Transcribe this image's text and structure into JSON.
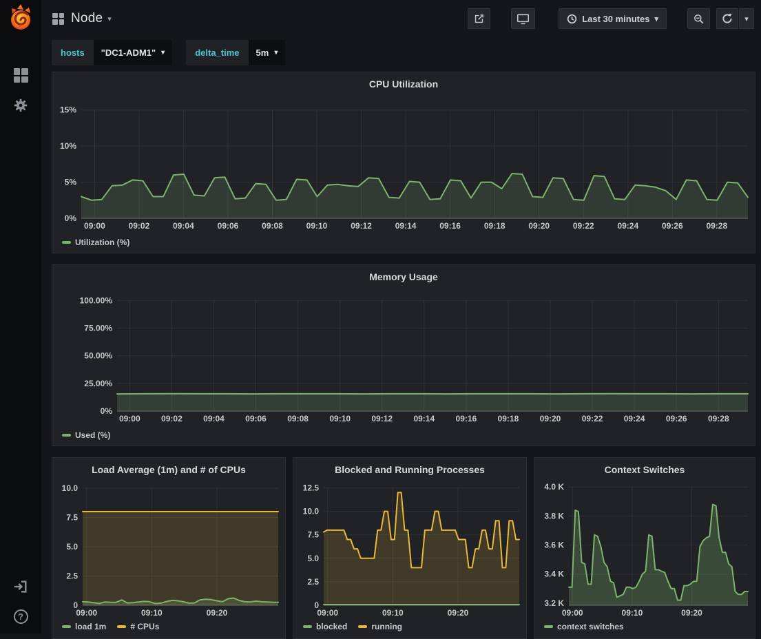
{
  "topnav": {
    "title": "Node",
    "buttons": [
      {
        "name": "share-icon"
      },
      {
        "name": "tv-mode-icon"
      },
      {
        "name": "time-range-picker",
        "icon": "clock-icon",
        "label": "Last 30 minutes"
      },
      {
        "name": "zoom-out-icon"
      },
      {
        "name": "refresh-icon"
      },
      {
        "name": "refresh-interval-caret"
      }
    ]
  },
  "sidebar": {
    "items": [
      {
        "icon": "grafana-logo"
      },
      {
        "icon": "dashboards-grid-icon"
      },
      {
        "icon": "settings-gear-icon"
      },
      {
        "icon": "sign-in-icon"
      },
      {
        "icon": "help-icon"
      }
    ]
  },
  "variables": [
    {
      "label": "hosts",
      "value": "\"DC1-ADM1\""
    },
    {
      "label": "delta_time",
      "value": "5m"
    }
  ],
  "colors": {
    "green": "#7eb26d",
    "orange": "#eab839",
    "teal": "#4ec9d4",
    "panel_bg": "#212226",
    "page_bg": "#141619"
  },
  "chart_data": [
    {
      "type": "area",
      "title": "CPU Utilization",
      "xdomain": [
        -0.6,
        29.4
      ],
      "ylim": [
        0,
        16.4
      ],
      "layout": {
        "ml": 38
      },
      "x_ticks": [
        {
          "v": 0,
          "label": "09:00"
        },
        {
          "v": 2,
          "label": "09:02"
        },
        {
          "v": 4,
          "label": "09:04"
        },
        {
          "v": 6,
          "label": "09:06"
        },
        {
          "v": 8,
          "label": "09:08"
        },
        {
          "v": 10,
          "label": "09:10"
        },
        {
          "v": 12,
          "label": "09:12"
        },
        {
          "v": 14,
          "label": "09:14"
        },
        {
          "v": 16,
          "label": "09:16"
        },
        {
          "v": 18,
          "label": "09:18"
        },
        {
          "v": 20,
          "label": "09:20"
        },
        {
          "v": 22,
          "label": "09:22"
        },
        {
          "v": 24,
          "label": "09:24"
        },
        {
          "v": 26,
          "label": "09:26"
        },
        {
          "v": 28,
          "label": "09:28"
        }
      ],
      "y_ticks": [
        {
          "v": 0,
          "label": "0%"
        },
        {
          "v": 5,
          "label": "5%"
        },
        {
          "v": 10,
          "label": "10%"
        },
        {
          "v": 15,
          "label": "15%"
        }
      ],
      "legend": [
        {
          "label": "Utilization (%)",
          "color": "#7eb26d"
        }
      ],
      "series": [
        {
          "name": "Utilization (%)",
          "color": "#7eb26d",
          "fill": 0.18,
          "values": [
            3.0,
            2.5,
            2.6,
            4.5,
            4.6,
            5.3,
            5.2,
            3.0,
            3.0,
            6.0,
            6.1,
            3.2,
            3.1,
            5.6,
            5.7,
            2.7,
            2.8,
            4.8,
            4.7,
            2.5,
            2.6,
            5.4,
            5.3,
            3.0,
            4.6,
            4.7,
            4.5,
            4.4,
            5.6,
            5.5,
            2.9,
            2.8,
            5.1,
            5.0,
            2.6,
            2.7,
            5.3,
            5.2,
            2.8,
            5.0,
            5.0,
            4.1,
            6.2,
            6.1,
            3.0,
            2.9,
            5.6,
            5.5,
            2.6,
            2.5,
            5.9,
            5.8,
            2.7,
            2.6,
            4.6,
            4.5,
            4.3,
            3.8,
            2.6,
            5.3,
            5.2,
            2.6,
            2.5,
            5.0,
            4.9,
            2.9
          ]
        }
      ]
    },
    {
      "type": "area",
      "title": "Memory Usage",
      "xdomain": [
        -0.6,
        29.4
      ],
      "ylim": [
        0,
        107
      ],
      "layout": {
        "ml": 90
      },
      "x_ticks": [
        {
          "v": 0,
          "label": "09:00"
        },
        {
          "v": 2,
          "label": "09:02"
        },
        {
          "v": 4,
          "label": "09:04"
        },
        {
          "v": 6,
          "label": "09:06"
        },
        {
          "v": 8,
          "label": "09:08"
        },
        {
          "v": 10,
          "label": "09:10"
        },
        {
          "v": 12,
          "label": "09:12"
        },
        {
          "v": 14,
          "label": "09:14"
        },
        {
          "v": 16,
          "label": "09:16"
        },
        {
          "v": 18,
          "label": "09:18"
        },
        {
          "v": 20,
          "label": "09:20"
        },
        {
          "v": 22,
          "label": "09:22"
        },
        {
          "v": 24,
          "label": "09:24"
        },
        {
          "v": 26,
          "label": "09:26"
        },
        {
          "v": 28,
          "label": "09:28"
        }
      ],
      "y_ticks": [
        {
          "v": 0,
          "label": "0%"
        },
        {
          "v": 25,
          "label": "25.00%"
        },
        {
          "v": 50,
          "label": "50.00%"
        },
        {
          "v": 75,
          "label": "75.00%"
        },
        {
          "v": 100,
          "label": "100.00%"
        }
      ],
      "legend": [
        {
          "label": "Used (%)",
          "color": "#7eb26d"
        }
      ],
      "series": [
        {
          "name": "Used (%)",
          "color": "#7eb26d",
          "fill": 0.2,
          "values": [
            15.5,
            15.6,
            15.7,
            15.6,
            15.6,
            15.5,
            15.6,
            15.6,
            15.6,
            15.5,
            15.6,
            15.6,
            15.5,
            15.6,
            15.6,
            15.6,
            15.5,
            15.6,
            15.7,
            15.6,
            15.6,
            15.5,
            15.6,
            15.6
          ]
        }
      ]
    },
    {
      "type": "area",
      "title": "Load Average (1m) and # of CPUs",
      "xdomain": [
        -0.6,
        29.4
      ],
      "ylim": [
        0,
        10.35
      ],
      "layout": {
        "ml": 40
      },
      "x_ticks": [
        {
          "v": 0,
          "label": "09:00"
        },
        {
          "v": 10,
          "label": "09:10"
        },
        {
          "v": 20,
          "label": "09:20"
        }
      ],
      "y_ticks": [
        {
          "v": 0,
          "label": "0"
        },
        {
          "v": 2.5,
          "label": "2.5"
        },
        {
          "v": 5,
          "label": "5.0"
        },
        {
          "v": 7.5,
          "label": "7.5"
        },
        {
          "v": 10,
          "label": "10.0"
        }
      ],
      "legend": [
        {
          "label": "load 1m",
          "color": "#7eb26d"
        },
        {
          "label": "# CPUs",
          "color": "#eab839"
        }
      ],
      "series": [
        {
          "name": "# CPUs",
          "color": "#eab839",
          "fill": 0.16,
          "values": [
            8,
            8
          ]
        },
        {
          "name": "load 1m",
          "color": "#7eb26d",
          "fill": 0.2,
          "values": [
            0.3,
            0.28,
            0.22,
            0.15,
            0.28,
            0.26,
            0.25,
            0.45,
            0.2,
            0.22,
            0.28,
            0.33,
            0.3,
            0.15,
            0.18,
            0.32,
            0.42,
            0.38,
            0.3,
            0.18,
            0.2,
            0.45,
            0.52,
            0.48,
            0.38,
            0.3,
            0.55,
            0.62,
            0.42,
            0.3,
            0.28,
            0.35,
            0.3,
            0.28,
            0.26,
            0.25
          ]
        }
      ]
    },
    {
      "type": "area",
      "title": "Blocked and Running Processes",
      "xdomain": [
        -0.6,
        29.4
      ],
      "ylim": [
        0,
        12.9
      ],
      "layout": {
        "ml": 40
      },
      "x_ticks": [
        {
          "v": 0,
          "label": "09:00"
        },
        {
          "v": 10,
          "label": "09:10"
        },
        {
          "v": 20,
          "label": "09:20"
        }
      ],
      "y_ticks": [
        {
          "v": 0,
          "label": "0"
        },
        {
          "v": 2.5,
          "label": "2.5"
        },
        {
          "v": 5,
          "label": "5.0"
        },
        {
          "v": 7.5,
          "label": "7.5"
        },
        {
          "v": 10,
          "label": "10.0"
        },
        {
          "v": 12.5,
          "label": "12.5"
        }
      ],
      "legend": [
        {
          "label": "blocked",
          "color": "#7eb26d"
        },
        {
          "label": "running",
          "color": "#eab839"
        }
      ],
      "series": [
        {
          "name": "running",
          "color": "#eab839",
          "fill": 0.16,
          "values": [
            7.8,
            8,
            8,
            8,
            8,
            8,
            8,
            7,
            7,
            6,
            6,
            5,
            5,
            5,
            5,
            5,
            8,
            8,
            10,
            10,
            7,
            7,
            12,
            12,
            8,
            8,
            4,
            4,
            4,
            4,
            8,
            8,
            8,
            10,
            10,
            8,
            8,
            8,
            8,
            8,
            7,
            7,
            7,
            4,
            4,
            6,
            6,
            8,
            8,
            6,
            6,
            9,
            9,
            4,
            4,
            9,
            9,
            7,
            7
          ]
        },
        {
          "name": "blocked",
          "color": "#7eb26d",
          "fill": 0.2,
          "values": [
            0.07,
            0.07
          ]
        }
      ]
    },
    {
      "type": "area",
      "title": "Context Switches",
      "xdomain": [
        -0.6,
        29.4
      ],
      "ylim": [
        3.185,
        4.02
      ],
      "layout": {
        "ml": 46
      },
      "x_ticks": [
        {
          "v": 0,
          "label": "09:00"
        },
        {
          "v": 10,
          "label": "09:10"
        },
        {
          "v": 20,
          "label": "09:20"
        }
      ],
      "y_ticks": [
        {
          "v": 3.2,
          "label": "3.2 K"
        },
        {
          "v": 3.4,
          "label": "3.4 K"
        },
        {
          "v": 3.6,
          "label": "3.6 K"
        },
        {
          "v": 3.8,
          "label": "3.8 K"
        },
        {
          "v": 4.0,
          "label": "4.0 K"
        }
      ],
      "legend": [
        {
          "label": "context switches",
          "color": "#7eb26d"
        }
      ],
      "series": [
        {
          "name": "context switches",
          "color": "#7eb26d",
          "fill": 0.28,
          "values": [
            3.31,
            3.31,
            3.84,
            3.83,
            3.48,
            3.47,
            3.33,
            3.33,
            3.67,
            3.66,
            3.59,
            3.48,
            3.45,
            3.35,
            3.34,
            3.24,
            3.25,
            3.26,
            3.31,
            3.31,
            3.3,
            3.31,
            3.35,
            3.4,
            3.42,
            3.67,
            3.66,
            3.43,
            3.43,
            3.42,
            3.41,
            3.35,
            3.3,
            3.3,
            3.22,
            3.22,
            3.32,
            3.32,
            3.33,
            3.35,
            3.35,
            3.59,
            3.63,
            3.65,
            3.66,
            3.88,
            3.87,
            3.65,
            3.55,
            3.55,
            3.47,
            3.45,
            3.28,
            3.26,
            3.26,
            3.28,
            3.28
          ]
        }
      ]
    }
  ]
}
